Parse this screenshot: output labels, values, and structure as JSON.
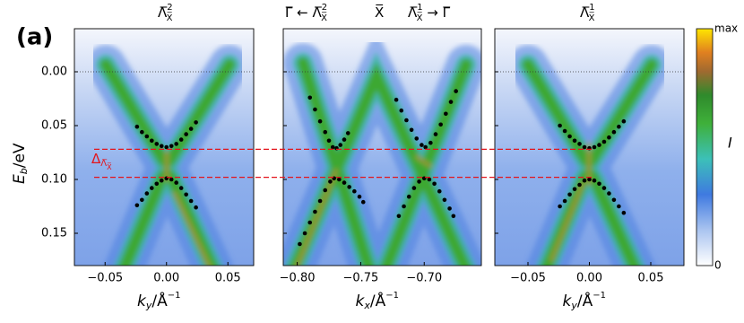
{
  "label": "(a)",
  "y_axis": {
    "label": [
      "E",
      "b",
      "/eV"
    ]
  },
  "colorbar": {
    "max": "max",
    "min": "0",
    "label": "I"
  },
  "delta": {
    "values": [
      0.072,
      0.098
    ],
    "label": [
      "Δ",
      "Λ̅",
      "X̅"
    ],
    "color": "#e3141b"
  },
  "chart_data": [
    {
      "type": "scatter",
      "title": [
        [
          "Λ̅",
          "2",
          "X̅"
        ]
      ],
      "x_label": [
        "k",
        "y",
        "/Å",
        "−1"
      ],
      "xlim": [
        -0.075,
        0.071
      ],
      "ylim": [
        0.18,
        -0.04
      ],
      "xticks": [
        {
          "value": -0.05,
          "label": "−0.05"
        },
        {
          "value": 0,
          "label": "0.00"
        },
        0.05
      ],
      "yticks": [
        {
          "value": 0,
          "label": "0.00"
        },
        0.05,
        {
          "value": 0.1,
          "label": "0.10"
        },
        0.15
      ],
      "reference_line": 0,
      "series": [
        {
          "color": "#000000",
          "x": [
            -0.024,
            -0.02,
            -0.016,
            -0.012,
            -0.008,
            -0.004,
            0,
            0.004,
            0.008,
            0.012,
            0.016,
            0.02,
            0.024
          ],
          "values": [
            0.051,
            0.056,
            0.06,
            0.064,
            0.067,
            0.069,
            0.07,
            0.069,
            0.067,
            0.063,
            0.058,
            0.053,
            0.047
          ]
        },
        {
          "color": "#000000",
          "x": [
            -0.024,
            -0.02,
            -0.016,
            -0.012,
            -0.008,
            -0.004,
            0,
            0.004,
            0.008,
            0.012,
            0.016,
            0.02,
            0.024
          ],
          "values": [
            0.124,
            0.119,
            0.113,
            0.108,
            0.104,
            0.101,
            0.099,
            0.1,
            0.103,
            0.108,
            0.114,
            0.12,
            0.126
          ]
        }
      ]
    },
    {
      "type": "scatter",
      "title": [
        [
          "Γ̅ ← Λ̅",
          "2",
          "X̅"
        ],
        [
          "X̅"
        ],
        [
          "Λ̅",
          "1",
          "X̅",
          " → Γ̅"
        ]
      ],
      "x_label": [
        "k",
        "x",
        "/Å",
        "−1"
      ],
      "xlim": [
        -0.811,
        -0.655
      ],
      "ylim": [
        0.18,
        -0.04
      ],
      "xticks": [
        {
          "value": -0.8,
          "label": "−0.80"
        },
        {
          "value": -0.75,
          "label": "−0.75"
        },
        {
          "value": -0.7,
          "label": "−0.70"
        }
      ],
      "reference_line": 0,
      "series": [
        {
          "color": "#000000",
          "x": [
            -0.79,
            -0.786,
            -0.782,
            -0.778,
            -0.775,
            -0.772,
            -0.769,
            -0.766,
            -0.763,
            -0.76
          ],
          "values": [
            0.024,
            0.035,
            0.046,
            0.056,
            0.064,
            0.07,
            0.071,
            0.068,
            0.063,
            0.057
          ]
        },
        {
          "color": "#000000",
          "x": [
            -0.798,
            -0.794,
            -0.79,
            -0.786,
            -0.782,
            -0.778,
            -0.774,
            -0.771,
            -0.767,
            -0.763,
            -0.759,
            -0.755,
            -0.751,
            -0.748
          ],
          "values": [
            0.16,
            0.15,
            0.14,
            0.13,
            0.12,
            0.11,
            0.102,
            0.099,
            0.1,
            0.103,
            0.107,
            0.111,
            0.116,
            0.121
          ]
        },
        {
          "color": "#000000",
          "x": [
            -0.722,
            -0.718,
            -0.714,
            -0.71,
            -0.706,
            -0.702,
            -0.699,
            -0.695,
            -0.691,
            -0.687,
            -0.683,
            -0.679,
            -0.675
          ],
          "values": [
            0.026,
            0.036,
            0.045,
            0.054,
            0.062,
            0.068,
            0.07,
            0.066,
            0.058,
            0.049,
            0.039,
            0.028,
            0.018
          ]
        },
        {
          "color": "#000000",
          "x": [
            -0.72,
            -0.716,
            -0.712,
            -0.708,
            -0.704,
            -0.7,
            -0.696,
            -0.692,
            -0.688,
            -0.684,
            -0.68,
            -0.677
          ],
          "values": [
            0.134,
            0.125,
            0.116,
            0.108,
            0.102,
            0.099,
            0.1,
            0.104,
            0.111,
            0.119,
            0.127,
            0.134
          ]
        }
      ]
    },
    {
      "type": "scatter",
      "title": [
        [
          "Λ̅",
          "1",
          "X̅"
        ]
      ],
      "x_label": [
        "k",
        "y",
        "/Å",
        "−1"
      ],
      "xlim": [
        -0.077,
        0.077
      ],
      "ylim": [
        0.18,
        -0.04
      ],
      "xticks": [
        {
          "value": -0.05,
          "label": "−0.05"
        },
        {
          "value": 0,
          "label": "0.00"
        },
        0.05
      ],
      "reference_line": 0,
      "series": [
        {
          "color": "#000000",
          "x": [
            -0.024,
            -0.02,
            -0.016,
            -0.012,
            -0.008,
            -0.004,
            0,
            0.004,
            0.008,
            0.012,
            0.016,
            0.02,
            0.024,
            0.028
          ],
          "values": [
            0.05,
            0.055,
            0.06,
            0.064,
            0.067,
            0.07,
            0.071,
            0.07,
            0.068,
            0.065,
            0.061,
            0.056,
            0.051,
            0.046
          ]
        },
        {
          "color": "#000000",
          "x": [
            -0.024,
            -0.02,
            -0.016,
            -0.012,
            -0.008,
            -0.004,
            0,
            0.004,
            0.008,
            0.012,
            0.016,
            0.02,
            0.024,
            0.028
          ],
          "values": [
            0.125,
            0.12,
            0.114,
            0.109,
            0.105,
            0.101,
            0.1,
            0.101,
            0.104,
            0.108,
            0.113,
            0.119,
            0.125,
            0.131
          ]
        }
      ]
    }
  ]
}
